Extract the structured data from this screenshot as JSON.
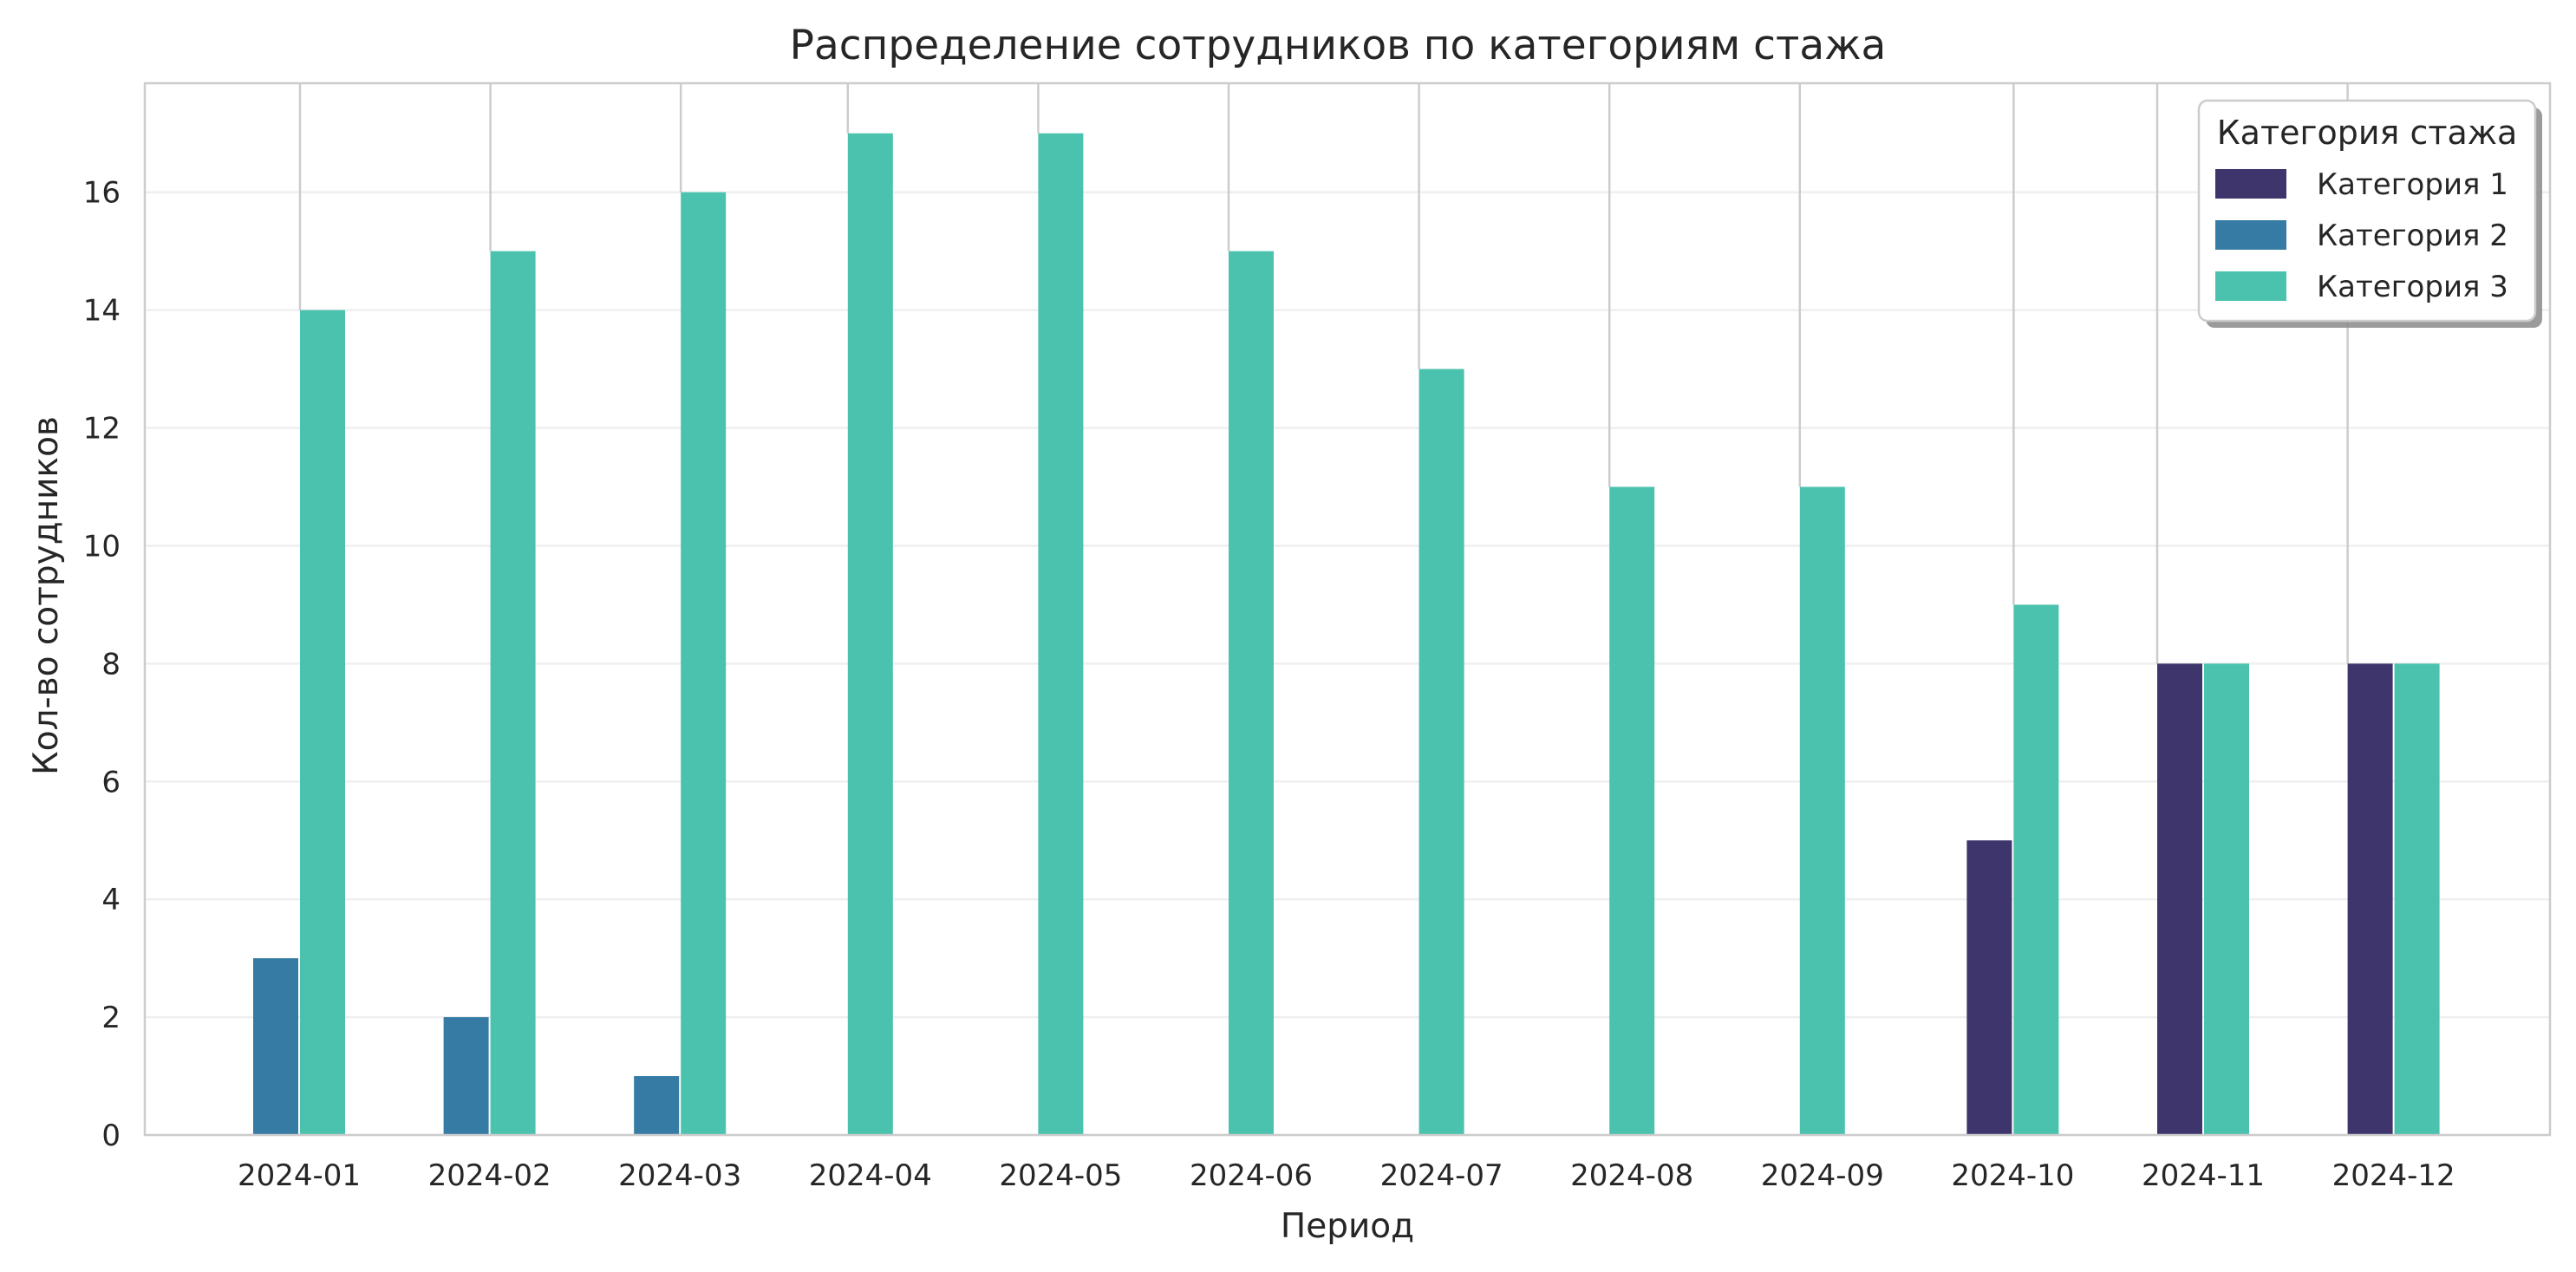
{
  "colors": {
    "background": "#ffffff",
    "grid": "#efefef",
    "axes_frame": "#cccccc",
    "category_line": "#cccccc",
    "text": "#262626"
  },
  "chart_data": {
    "type": "bar",
    "title": "Распределение сотрудников по категориям стажа",
    "xlabel": "Период",
    "ylabel": "Кол-во сотрудников",
    "categories": [
      "2024-01",
      "2024-02",
      "2024-03",
      "2024-04",
      "2024-05",
      "2024-06",
      "2024-07",
      "2024-08",
      "2024-09",
      "2024-10",
      "2024-11",
      "2024-12"
    ],
    "series": [
      {
        "name": "Категория 1",
        "color": "#3d356b",
        "values": [
          0,
          0,
          0,
          0,
          0,
          0,
          0,
          0,
          0,
          5,
          8,
          8
        ]
      },
      {
        "name": "Категория 2",
        "color": "#357ba3",
        "values": [
          3,
          2,
          1,
          0,
          0,
          0,
          0,
          0,
          0,
          0,
          0,
          0
        ]
      },
      {
        "name": "Категория 3",
        "color": "#4bc2ad",
        "values": [
          14,
          15,
          16,
          17,
          17,
          15,
          13,
          11,
          11,
          9,
          8,
          8
        ]
      }
    ],
    "ylim": [
      0,
      17.85
    ],
    "yticks": [
      0,
      2,
      4,
      6,
      8,
      10,
      12,
      14,
      16
    ],
    "grid": "y-axis horizontal lines",
    "legend": {
      "title": "Категория стажа",
      "placement": "top-right"
    }
  }
}
